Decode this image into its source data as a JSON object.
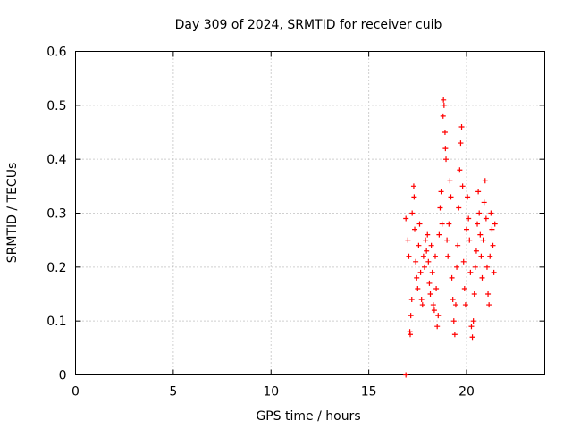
{
  "chart_data": {
    "type": "scatter",
    "title": "Day 309 of 2024, SRMTID for receiver cuib",
    "xlabel": "GPS time / hours",
    "ylabel": "SRMTID / TECUs",
    "xlim": [
      0,
      24
    ],
    "ylim": [
      0,
      0.6
    ],
    "xticks": [
      0,
      5,
      10,
      15,
      20
    ],
    "yticks": [
      0,
      0.1,
      0.2,
      0.3,
      0.4,
      0.5,
      0.6
    ],
    "xtick_labels": [
      "0",
      "5",
      "10",
      "15",
      "20"
    ],
    "ytick_labels": [
      "0",
      "0.1",
      "0.2",
      "0.3",
      "0.4",
      "0.5",
      "0.6"
    ],
    "grid": true,
    "marker": "+",
    "color": "#ff0000",
    "series": [
      {
        "name": "SRMTID",
        "points": [
          [
            16.9,
            0.0
          ],
          [
            16.9,
            0.29
          ],
          [
            17.0,
            0.25
          ],
          [
            17.05,
            0.22
          ],
          [
            17.1,
            0.08
          ],
          [
            17.12,
            0.075
          ],
          [
            17.15,
            0.11
          ],
          [
            17.2,
            0.14
          ],
          [
            17.22,
            0.3
          ],
          [
            17.3,
            0.35
          ],
          [
            17.32,
            0.33
          ],
          [
            17.35,
            0.27
          ],
          [
            17.4,
            0.21
          ],
          [
            17.45,
            0.18
          ],
          [
            17.5,
            0.16
          ],
          [
            17.55,
            0.24
          ],
          [
            17.6,
            0.28
          ],
          [
            17.65,
            0.19
          ],
          [
            17.7,
            0.14
          ],
          [
            17.75,
            0.13
          ],
          [
            17.8,
            0.22
          ],
          [
            17.85,
            0.2
          ],
          [
            17.9,
            0.25
          ],
          [
            17.95,
            0.23
          ],
          [
            18.0,
            0.26
          ],
          [
            18.05,
            0.21
          ],
          [
            18.1,
            0.17
          ],
          [
            18.15,
            0.15
          ],
          [
            18.2,
            0.24
          ],
          [
            18.25,
            0.19
          ],
          [
            18.3,
            0.13
          ],
          [
            18.35,
            0.12
          ],
          [
            18.4,
            0.22
          ],
          [
            18.45,
            0.16
          ],
          [
            18.5,
            0.09
          ],
          [
            18.55,
            0.11
          ],
          [
            18.6,
            0.26
          ],
          [
            18.65,
            0.31
          ],
          [
            18.7,
            0.34
          ],
          [
            18.75,
            0.28
          ],
          [
            18.8,
            0.48
          ],
          [
            18.82,
            0.51
          ],
          [
            18.85,
            0.5
          ],
          [
            18.9,
            0.45
          ],
          [
            18.92,
            0.42
          ],
          [
            18.95,
            0.4
          ],
          [
            19.0,
            0.25
          ],
          [
            19.05,
            0.22
          ],
          [
            19.1,
            0.28
          ],
          [
            19.15,
            0.36
          ],
          [
            19.2,
            0.33
          ],
          [
            19.25,
            0.18
          ],
          [
            19.3,
            0.14
          ],
          [
            19.35,
            0.1
          ],
          [
            19.4,
            0.075
          ],
          [
            19.45,
            0.13
          ],
          [
            19.5,
            0.2
          ],
          [
            19.55,
            0.24
          ],
          [
            19.6,
            0.31
          ],
          [
            19.65,
            0.38
          ],
          [
            19.7,
            0.43
          ],
          [
            19.75,
            0.46
          ],
          [
            19.8,
            0.35
          ],
          [
            19.85,
            0.21
          ],
          [
            19.9,
            0.16
          ],
          [
            19.95,
            0.13
          ],
          [
            20.0,
            0.27
          ],
          [
            20.05,
            0.33
          ],
          [
            20.1,
            0.29
          ],
          [
            20.15,
            0.25
          ],
          [
            20.2,
            0.19
          ],
          [
            20.25,
            0.09
          ],
          [
            20.3,
            0.07
          ],
          [
            20.35,
            0.1
          ],
          [
            20.4,
            0.15
          ],
          [
            20.45,
            0.2
          ],
          [
            20.5,
            0.23
          ],
          [
            20.55,
            0.28
          ],
          [
            20.6,
            0.34
          ],
          [
            20.65,
            0.3
          ],
          [
            20.7,
            0.26
          ],
          [
            20.75,
            0.22
          ],
          [
            20.8,
            0.18
          ],
          [
            20.85,
            0.25
          ],
          [
            20.9,
            0.32
          ],
          [
            20.95,
            0.36
          ],
          [
            21.0,
            0.29
          ],
          [
            21.05,
            0.2
          ],
          [
            21.1,
            0.15
          ],
          [
            21.15,
            0.13
          ],
          [
            21.2,
            0.22
          ],
          [
            21.25,
            0.3
          ],
          [
            21.3,
            0.27
          ],
          [
            21.35,
            0.24
          ],
          [
            21.4,
            0.19
          ],
          [
            21.45,
            0.28
          ]
        ]
      }
    ]
  }
}
